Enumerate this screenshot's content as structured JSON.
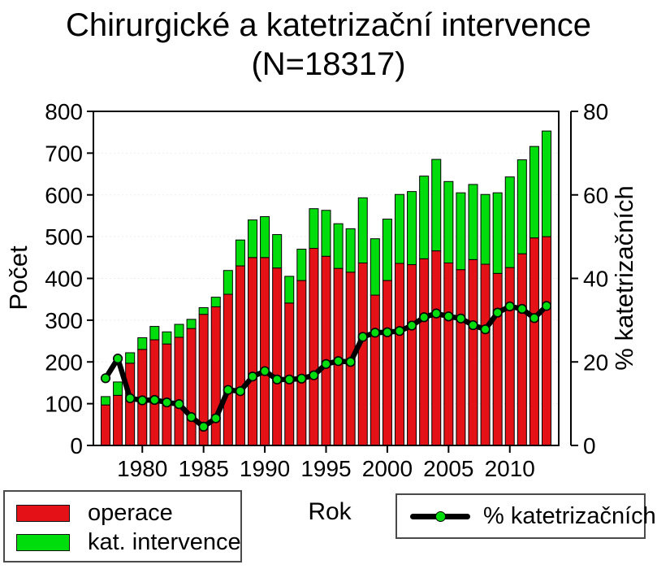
{
  "title": {
    "line1": "Chirurgické a katetrizační intervence",
    "line2": "(N=18317)"
  },
  "chart_data": {
    "type": "bar",
    "subtype": "stacked bars with overlay line on secondary axis",
    "x": [
      1977,
      1978,
      1979,
      1980,
      1981,
      1982,
      1983,
      1984,
      1985,
      1986,
      1987,
      1988,
      1989,
      1990,
      1991,
      1992,
      1993,
      1994,
      1995,
      1996,
      1997,
      1998,
      1999,
      2000,
      2001,
      2002,
      2003,
      2004,
      2005,
      2006,
      2007,
      2008,
      2009,
      2010,
      2011,
      2012,
      2013
    ],
    "series": [
      {
        "name": "operace",
        "type": "bar",
        "axis": "left",
        "color": "#e41216",
        "values": [
          97,
          120,
          197,
          230,
          253,
          243,
          259,
          280,
          314,
          332,
          362,
          430,
          450,
          450,
          425,
          341,
          395,
          472,
          453,
          424,
          415,
          437,
          360,
          395,
          436,
          433,
          447,
          466,
          437,
          421,
          445,
          434,
          412,
          426,
          459,
          497,
          500
        ]
      },
      {
        "name": "kat. intervence",
        "type": "bar",
        "axis": "left",
        "color": "#00dd0d",
        "values": [
          20,
          32,
          25,
          28,
          32,
          29,
          31,
          22,
          16,
          23,
          57,
          62,
          90,
          98,
          80,
          64,
          75,
          95,
          110,
          107,
          104,
          156,
          135,
          147,
          165,
          175,
          198,
          219,
          195,
          184,
          180,
          167,
          193,
          217,
          225,
          219,
          253
        ]
      },
      {
        "name": "% katetrizačních",
        "type": "line",
        "axis": "right",
        "color": "#000000",
        "marker_color": "#00dd0d",
        "values": [
          16.1,
          20.8,
          11.3,
          10.8,
          10.9,
          10.3,
          9.9,
          6.8,
          4.5,
          6.5,
          13.3,
          13.0,
          16.5,
          17.8,
          15.8,
          15.8,
          16.0,
          16.8,
          19.5,
          20.2,
          20.0,
          26.0,
          27.0,
          27.1,
          27.4,
          28.7,
          30.7,
          31.6,
          30.9,
          30.4,
          28.8,
          27.8,
          31.8,
          33.3,
          32.7,
          30.5,
          33.4
        ]
      }
    ],
    "xlabel": "Rok",
    "ylabel_left": "Počet",
    "ylabel_right": "% katetrizačních",
    "ylim_left": [
      0,
      800
    ],
    "ylim_right": [
      0,
      80
    ],
    "yticks_left": [
      0,
      100,
      200,
      300,
      400,
      500,
      600,
      700,
      800
    ],
    "yticks_right": [
      0,
      20,
      40,
      60,
      80
    ],
    "xticks": [
      1980,
      1985,
      1990,
      1995,
      2000,
      2005,
      2010
    ],
    "grid": "faint dotted horizontal lines every 100",
    "legend_position": "below chart"
  },
  "legend_bars": {
    "items": [
      {
        "label": "operace",
        "color": "#e41216"
      },
      {
        "label": "kat. intervence",
        "color": "#00dd0d"
      }
    ]
  },
  "legend_line": {
    "label": "% katetrizačních"
  }
}
